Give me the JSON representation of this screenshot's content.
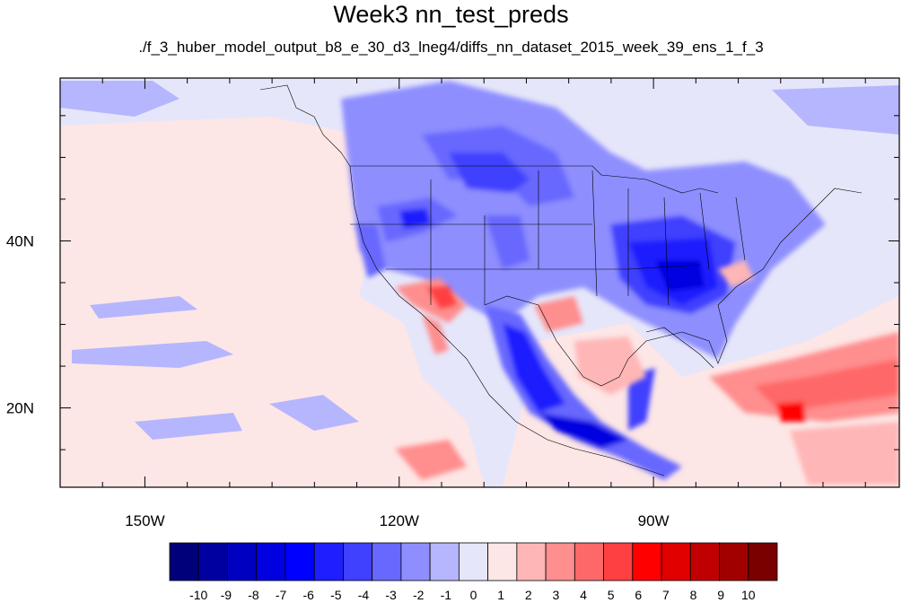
{
  "title": "Week3 nn_test_preds",
  "subtitle": "./f_3_huber_model_output_b8_e_30_d3_lneg4/diffs_nn_dataset_2015_week_39_ens_1_f_3",
  "map": {
    "lat_labels": [
      "40N",
      "20N"
    ],
    "lon_labels": [
      "150W",
      "120W",
      "90W"
    ],
    "lat_ticks": [
      40,
      20
    ],
    "lon_ticks": [
      -150,
      -120,
      -90
    ],
    "lon_range": [
      -160,
      -61
    ],
    "lat_range": [
      10.5,
      59.5
    ]
  },
  "colorbar": {
    "labels": [
      "-10",
      "-9",
      "-8",
      "-7",
      "-6",
      "-5",
      "-4",
      "-3",
      "-2",
      "-1",
      "0",
      "1",
      "2",
      "3",
      "4",
      "5",
      "6",
      "7",
      "8",
      "9",
      "10"
    ],
    "colors": [
      "#00007a",
      "#0000a0",
      "#0000c0",
      "#0000e0",
      "#0000ff",
      "#1e1eff",
      "#4040ff",
      "#6868ff",
      "#8e8eff",
      "#b6b6ff",
      "#e6e6fa",
      "#fde6e6",
      "#ffb6b6",
      "#ff8e8e",
      "#ff6868",
      "#ff4040",
      "#ff0000",
      "#e00000",
      "#c00000",
      "#a00000",
      "#7a0000"
    ]
  }
}
